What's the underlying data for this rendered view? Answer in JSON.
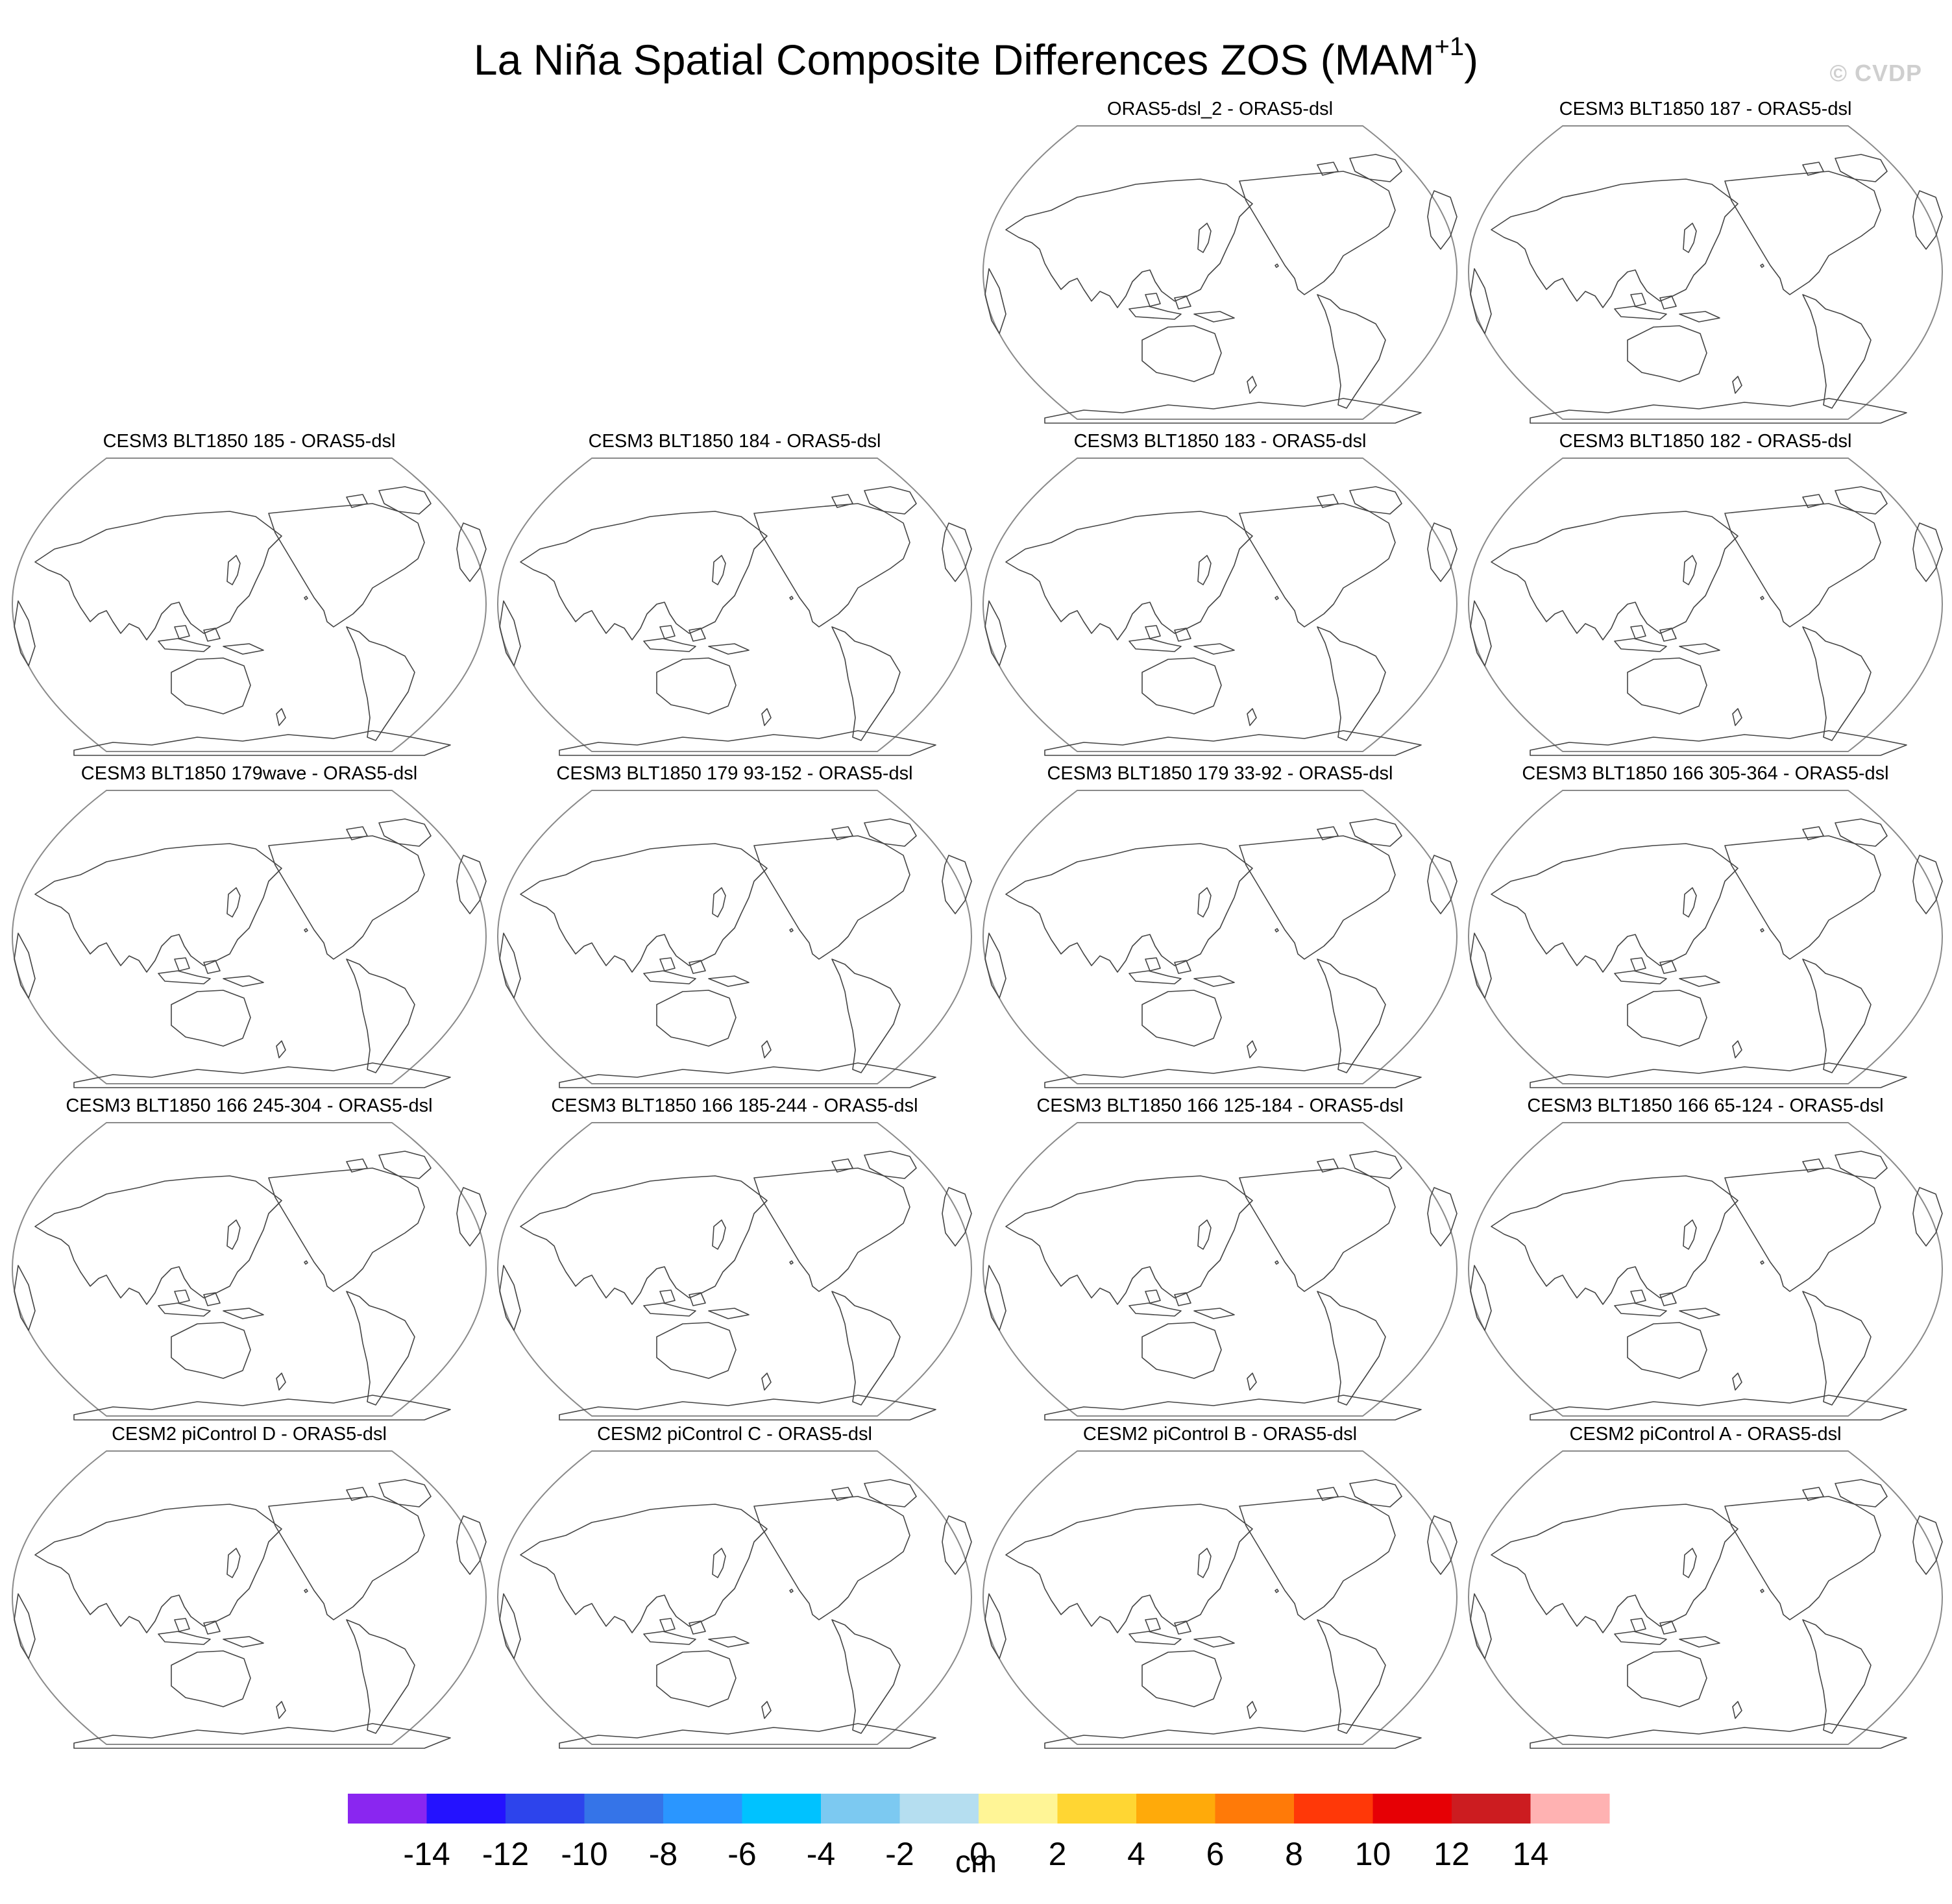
{
  "title": {
    "main": "La Niña Spatial Composite Differences ZOS (MAM",
    "superscript": "+1",
    "close": ")"
  },
  "watermark": "© CVDP",
  "panels": [
    {
      "title": "ORAS5-dsl_2 - ORAS5-dsl"
    },
    {
      "title": "CESM3 BLT1850 187 - ORAS5-dsl"
    },
    {
      "title": "CESM3 BLT1850 185 - ORAS5-dsl"
    },
    {
      "title": "CESM3 BLT1850 184 - ORAS5-dsl"
    },
    {
      "title": "CESM3 BLT1850 183 - ORAS5-dsl"
    },
    {
      "title": "CESM3 BLT1850 182 - ORAS5-dsl"
    },
    {
      "title": "CESM3 BLT1850 179wave - ORAS5-dsl"
    },
    {
      "title": "CESM3 BLT1850 179 93-152 - ORAS5-dsl"
    },
    {
      "title": "CESM3 BLT1850 179 33-92 - ORAS5-dsl"
    },
    {
      "title": "CESM3 BLT1850 166 305-364 - ORAS5-dsl"
    },
    {
      "title": "CESM3 BLT1850 166 245-304 - ORAS5-dsl"
    },
    {
      "title": "CESM3 BLT1850 166 185-244 - ORAS5-dsl"
    },
    {
      "title": "CESM3 BLT1850 166 125-184 - ORAS5-dsl"
    },
    {
      "title": "CESM3 BLT1850 166 65-124 - ORAS5-dsl"
    },
    {
      "title": "CESM2 piControl D - ORAS5-dsl"
    },
    {
      "title": "CESM2 piControl C - ORAS5-dsl"
    },
    {
      "title": "CESM2 piControl B - ORAS5-dsl"
    },
    {
      "title": "CESM2 piControl A - ORAS5-dsl"
    }
  ],
  "colorbar": {
    "unit": "cm",
    "ticks": [
      "-14",
      "-12",
      "-10",
      "-8",
      "-6",
      "-4",
      "-2",
      "0",
      "2",
      "4",
      "6",
      "8",
      "10",
      "12",
      "14"
    ],
    "colors": [
      "#8a26f0",
      "#2412ff",
      "#2d44ec",
      "#3574e8",
      "#2a96ff",
      "#00c2ff",
      "#7cc9f1",
      "#b5def0",
      "#fff596",
      "#ffd633",
      "#ffaa0a",
      "#ff7a08",
      "#ff3808",
      "#e60005",
      "#cc1c20",
      "#ffb2b2"
    ]
  }
}
